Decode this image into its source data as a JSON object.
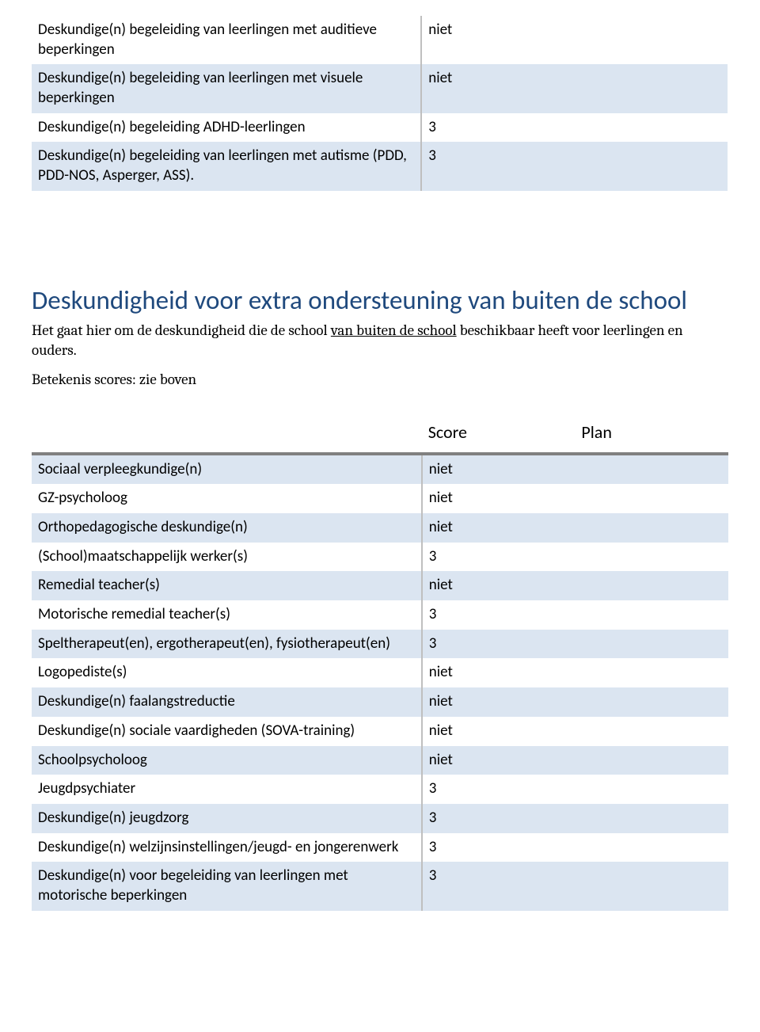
{
  "colors": {
    "row_shade": "#dbe5f1",
    "heading": "#1f497d",
    "separator": "#808080",
    "cell_border": "#bfbfbf",
    "text": "#000000",
    "background": "#ffffff"
  },
  "typography": {
    "body_font": "Calibri",
    "serif_font": "Cambria",
    "body_size_pt": 14,
    "heading_size_pt": 25,
    "header_row_size_pt": 16
  },
  "table1": {
    "columns": [
      "label",
      "score",
      "plan"
    ],
    "column_widths_pct": [
      56,
      22,
      22
    ],
    "rows": [
      {
        "label": "Deskundige(n) begeleiding van leerlingen met auditieve beperkingen",
        "score": "niet",
        "plan": "",
        "shaded": false
      },
      {
        "label": "Deskundige(n) begeleiding van leerlingen met visuele beperkingen",
        "score": "niet",
        "plan": "",
        "shaded": true
      },
      {
        "label": "Deskundige(n) begeleiding ADHD-leerlingen",
        "score": "3",
        "plan": "",
        "shaded": false
      },
      {
        "label": "Deskundige(n) begeleiding van leerlingen met autisme (PDD, PDD-NOS, Asperger, ASS).",
        "score": "3",
        "plan": "",
        "shaded": true
      }
    ]
  },
  "section": {
    "title": "Deskundigheid voor extra ondersteuning van buiten de school",
    "intro_before": "Het gaat hier om de deskundigheid die de school ",
    "intro_underlined": "van buiten de school",
    "intro_after": " beschikbaar heeft voor leerlingen en ouders.",
    "note": "Betekenis scores: zie boven"
  },
  "table2": {
    "header": {
      "label": "",
      "score": "Score",
      "plan": "Plan"
    },
    "columns": [
      "label",
      "score",
      "plan"
    ],
    "column_widths_pct": [
      56,
      22,
      22
    ],
    "rows": [
      {
        "label": "Sociaal verpleegkundige(n)",
        "score": "niet",
        "plan": "",
        "shaded": true
      },
      {
        "label": "GZ-psycholoog",
        "score": "niet",
        "plan": "",
        "shaded": false
      },
      {
        "label": "Orthopedagogische deskundige(n)",
        "score": "niet",
        "plan": "",
        "shaded": true
      },
      {
        "label": "(School)maatschappelijk werker(s)",
        "score": "3",
        "plan": "",
        "shaded": false
      },
      {
        "label": "Remedial teacher(s)",
        "score": "niet",
        "plan": "",
        "shaded": true
      },
      {
        "label": "Motorische remedial teacher(s)",
        "score": "3",
        "plan": "",
        "shaded": false
      },
      {
        "label": "Speltherapeut(en), ergotherapeut(en), fysiotherapeut(en)",
        "score": "3",
        "plan": "",
        "shaded": true
      },
      {
        "label": "Logopediste(s)",
        "score": "niet",
        "plan": "",
        "shaded": false
      },
      {
        "label": "Deskundige(n) faalangstreductie",
        "score": "niet",
        "plan": "",
        "shaded": true
      },
      {
        "label": "Deskundige(n) sociale vaardigheden (SOVA-training)",
        "score": "niet",
        "plan": "",
        "shaded": false
      },
      {
        "label": "Schoolpsycholoog",
        "score": "niet",
        "plan": "",
        "shaded": true
      },
      {
        "label": "Jeugdpsychiater",
        "score": "3",
        "plan": "",
        "shaded": false
      },
      {
        "label": "Deskundige(n) jeugdzorg",
        "score": "3",
        "plan": "",
        "shaded": true
      },
      {
        "label": "Deskundige(n) welzijnsinstellingen/jeugd- en jongerenwerk",
        "score": "3",
        "plan": "",
        "shaded": false
      },
      {
        "label": "Deskundige(n) voor begeleiding van leerlingen met motorische beperkingen",
        "score": "3",
        "plan": "",
        "shaded": true
      }
    ]
  }
}
